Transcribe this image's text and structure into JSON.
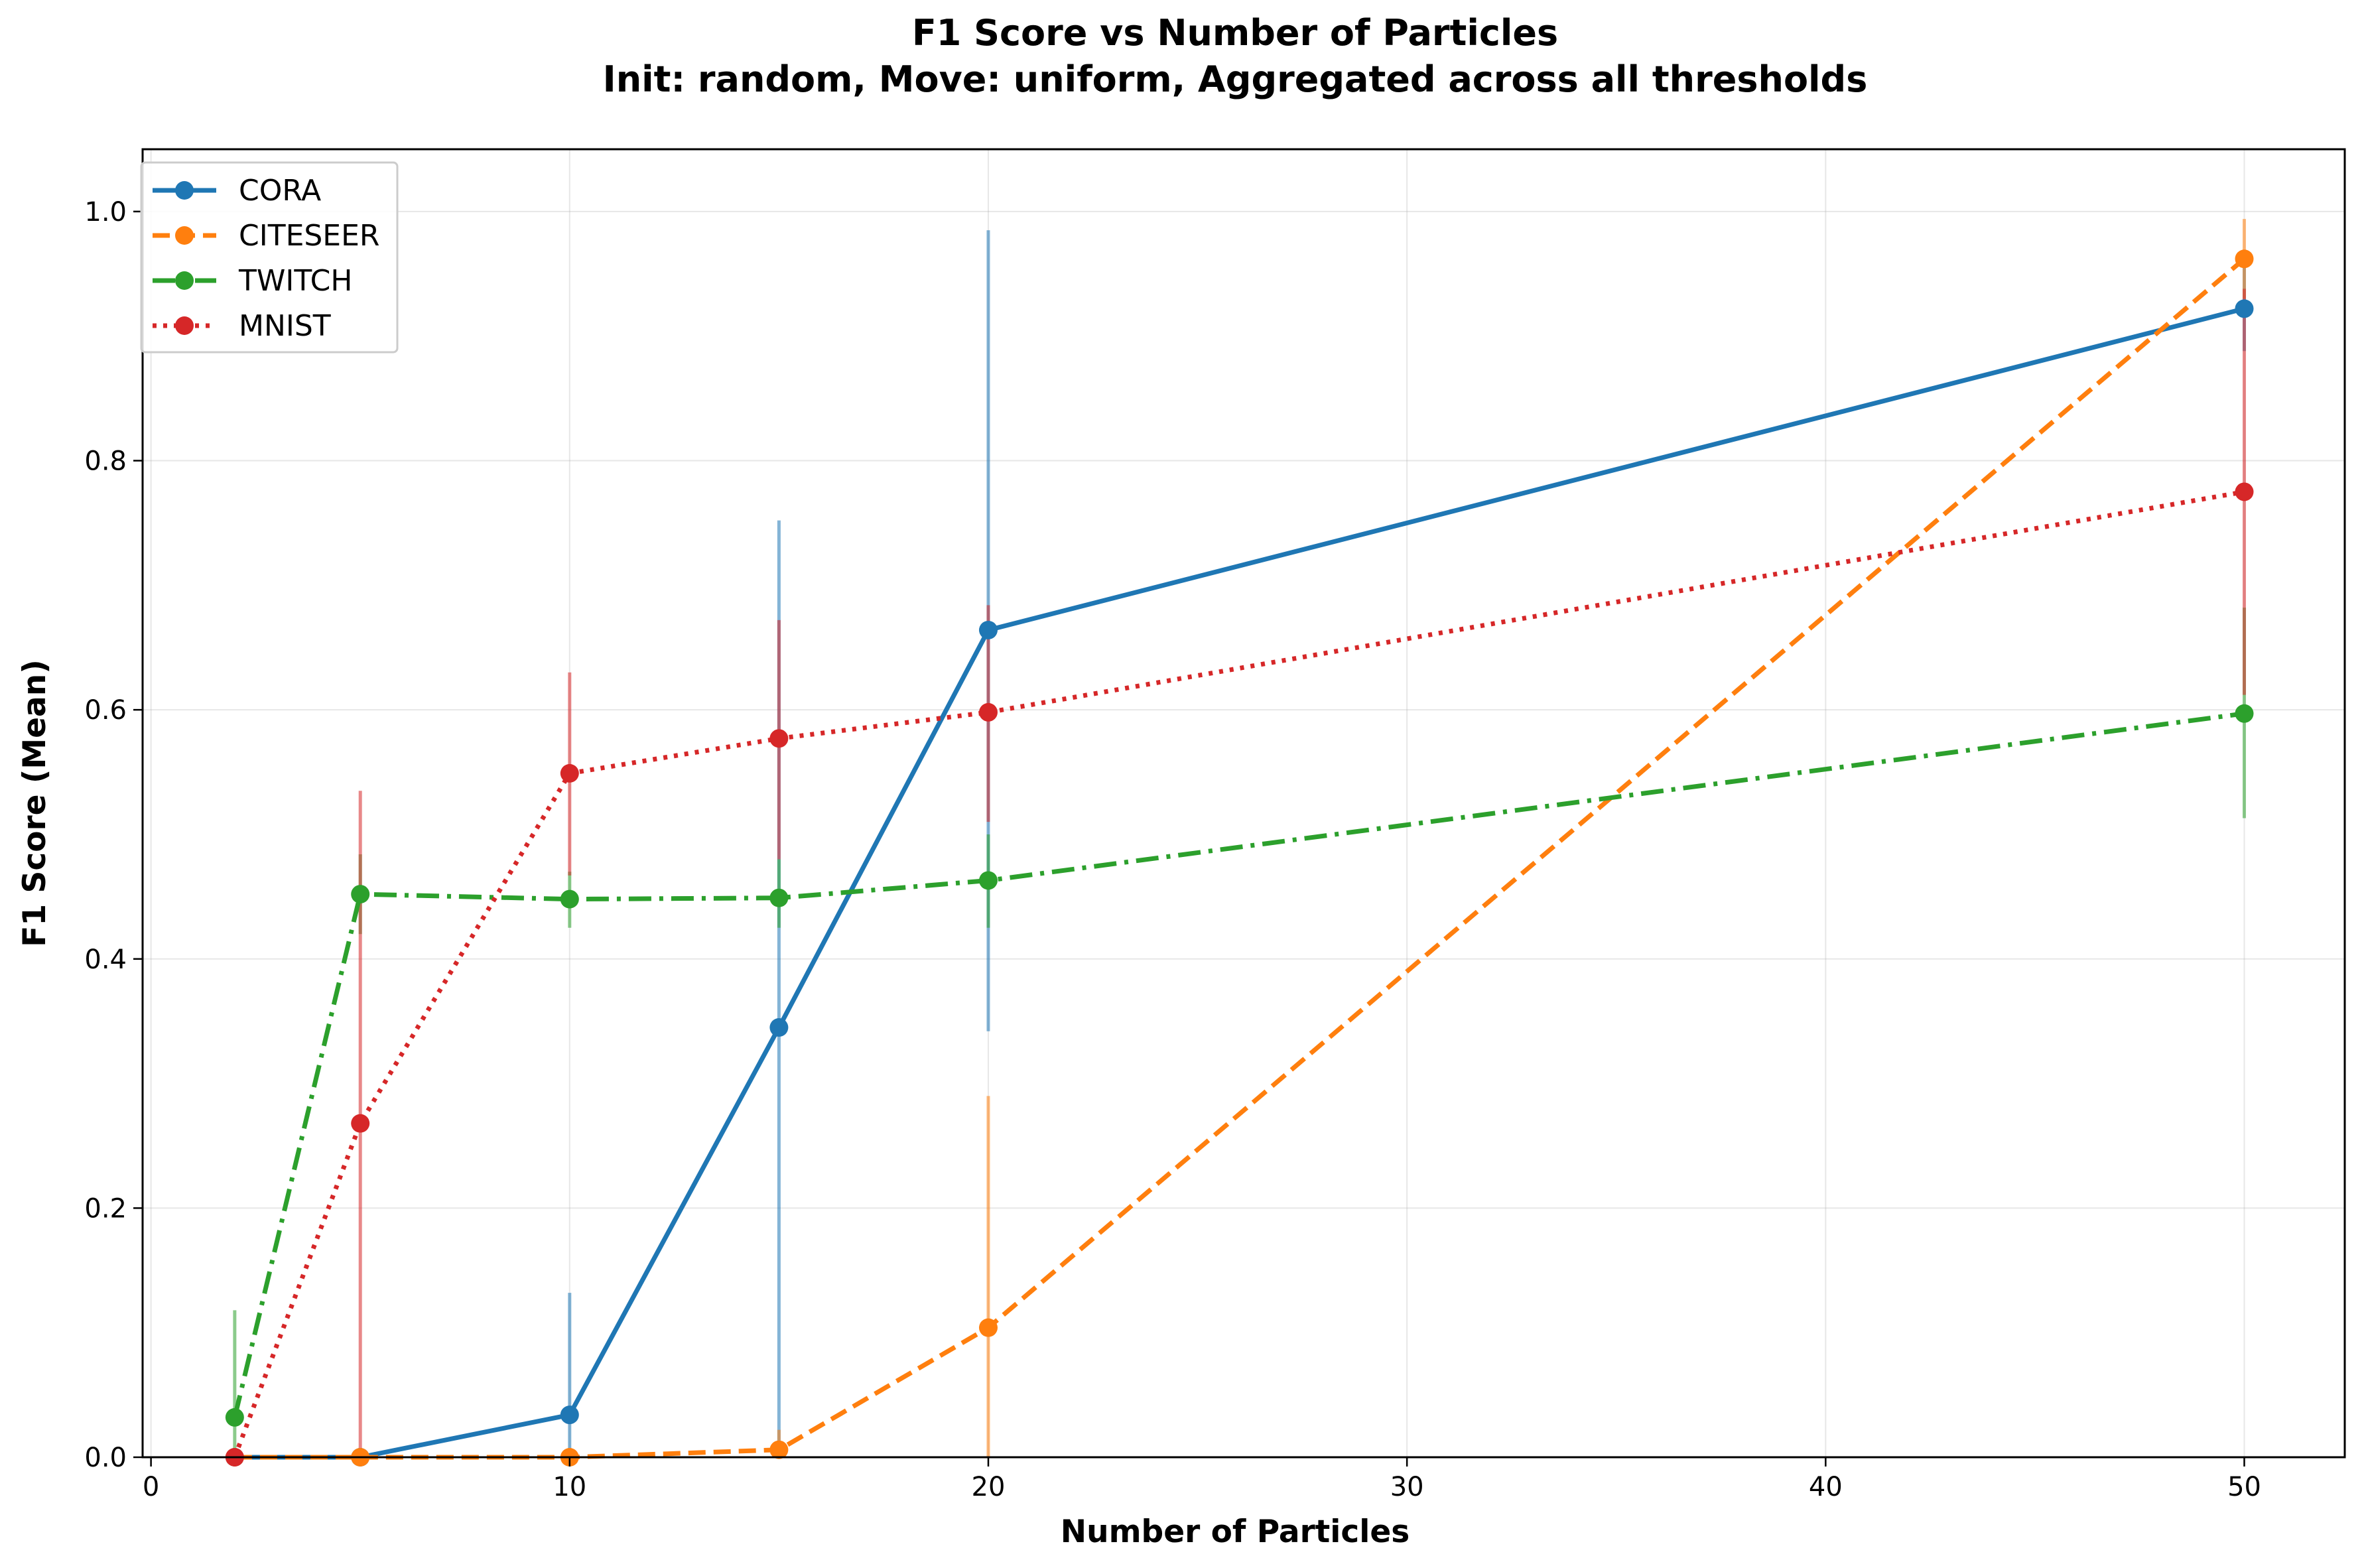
{
  "chart_data": {
    "type": "line",
    "title": "F1 Score vs Number of Particles",
    "subtitle": "Init: random, Move: uniform, Aggregated across all thresholds",
    "xlabel": "Number of Particles",
    "ylabel": "F1 Score (Mean)",
    "xlim": [
      -0.2,
      52.4
    ],
    "ylim": [
      0.0,
      1.05
    ],
    "xticks": [
      0,
      10,
      20,
      30,
      40,
      50
    ],
    "yticks": [
      0.0,
      0.2,
      0.4,
      0.6,
      0.8,
      1.0
    ],
    "xtick_labels": [
      "0",
      "10",
      "20",
      "30",
      "40",
      "50"
    ],
    "ytick_labels": [
      "0.0",
      "0.2",
      "0.4",
      "0.6",
      "0.8",
      "1.0"
    ],
    "grid": true,
    "legend_position": "upper-left",
    "x": [
      2,
      5,
      10,
      15,
      20,
      50
    ],
    "series": [
      {
        "name": "CORA",
        "color": "#1f77b4",
        "dash": "solid",
        "values": [
          0.0,
          0.0,
          0.034,
          0.345,
          0.664,
          0.922
        ],
        "err_low": [
          0.0,
          0.0,
          0.0,
          0.0,
          0.342,
          0.888
        ],
        "err_high": [
          0.0,
          0.0,
          0.132,
          0.752,
          0.985,
          0.956
        ]
      },
      {
        "name": "CITESEER",
        "color": "#ff7f0e",
        "dash": "dashed",
        "values": [
          0.0,
          0.0,
          0.0,
          0.006,
          0.104,
          0.962
        ],
        "err_low": [
          0.0,
          0.0,
          0.0,
          0.0,
          0.0,
          0.93
        ],
        "err_high": [
          0.0,
          0.0,
          0.0,
          0.022,
          0.29,
          0.994
        ]
      },
      {
        "name": "TWITCH",
        "color": "#2ca02c",
        "dash": "dashdot",
        "values": [
          0.032,
          0.452,
          0.448,
          0.449,
          0.463,
          0.597
        ],
        "err_low": [
          0.0,
          0.42,
          0.425,
          0.425,
          0.425,
          0.513
        ],
        "err_high": [
          0.118,
          0.484,
          0.47,
          0.48,
          0.5,
          0.682
        ]
      },
      {
        "name": "MNIST",
        "color": "#d62728",
        "dash": "dotted",
        "values": [
          0.0,
          0.268,
          0.549,
          0.577,
          0.598,
          0.775
        ],
        "err_low": [
          0.0,
          0.0,
          0.467,
          0.48,
          0.51,
          0.612
        ],
        "err_high": [
          0.0,
          0.535,
          0.63,
          0.672,
          0.684,
          0.938
        ]
      }
    ]
  }
}
